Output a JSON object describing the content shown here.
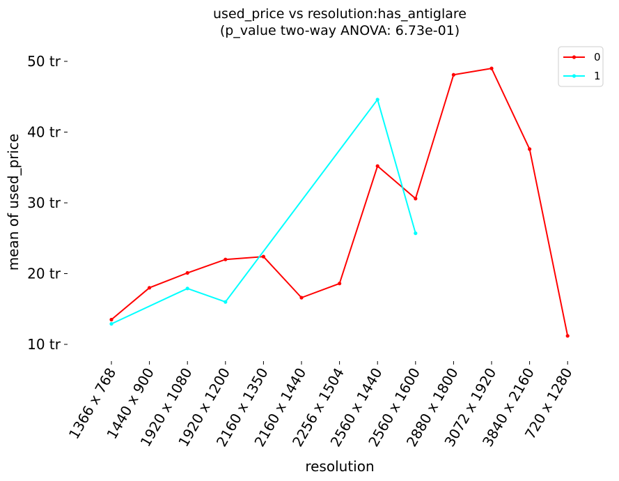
{
  "chart_data": {
    "type": "line",
    "title": "used_price vs resolution:has_antiglare",
    "subtitle": "(p_value two-way ANOVA: 6.73e-01)",
    "xlabel": "resolution",
    "ylabel": "mean of used_price",
    "categories": [
      "1366 x 768",
      "1440 x 900",
      "1920 x 1080",
      "1920 x 1200",
      "2160 x 1350",
      "2160 x 1440",
      "2256 x 1504",
      "2560 x 1440",
      "2560 x 1600",
      "2880 x 1800",
      "3072 x 1920",
      "3840 x 2160",
      "720 x 1280"
    ],
    "ylim": [
      8,
      52
    ],
    "yticks": [
      {
        "value": 10,
        "label": "10 tr"
      },
      {
        "value": 20,
        "label": "20 tr"
      },
      {
        "value": 30,
        "label": "30 tr"
      },
      {
        "value": 40,
        "label": "40 tr"
      },
      {
        "value": 50,
        "label": "50 tr"
      }
    ],
    "grid": false,
    "legend_position": "top-right",
    "series": [
      {
        "name": "0",
        "color": "#ff0000",
        "values": [
          13.5,
          18.0,
          20.1,
          22.0,
          22.4,
          16.6,
          18.6,
          35.2,
          30.6,
          48.1,
          49.0,
          37.6,
          11.2
        ]
      },
      {
        "name": "1",
        "color": "#00ffff",
        "values": [
          12.9,
          null,
          17.9,
          16.0,
          null,
          null,
          null,
          44.6,
          25.7,
          null,
          null,
          null,
          null
        ]
      }
    ]
  }
}
